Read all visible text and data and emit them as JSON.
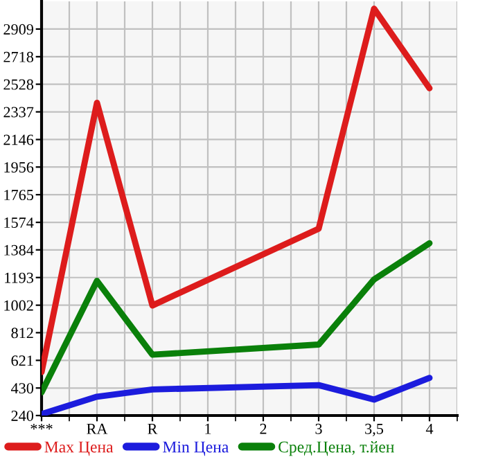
{
  "chart_data": {
    "type": "line",
    "categories": [
      "***",
      "RA",
      "R",
      "1",
      "2",
      "3",
      "3,5",
      "4"
    ],
    "series": [
      {
        "name": "Max Цена",
        "color": "#dd1c1c",
        "values": [
          540,
          2400,
          1000,
          null,
          null,
          1530,
          3050,
          2500
        ]
      },
      {
        "name": "Min Цена",
        "color": "#1c1cdd",
        "values": [
          250,
          370,
          420,
          null,
          null,
          450,
          350,
          500
        ]
      },
      {
        "name": "Сред.Цена, т.йен",
        "color": "#0a800a",
        "values": [
          400,
          1170,
          660,
          null,
          null,
          730,
          1180,
          1430
        ]
      }
    ],
    "ylim": [
      240,
      3100
    ],
    "yticks": [
      240,
      430,
      621,
      812,
      1002,
      1193,
      1384,
      1574,
      1765,
      1956,
      2146,
      2337,
      2528,
      2718,
      2909
    ],
    "grid": true,
    "legend": "bottom",
    "marker": "none",
    "line_style": "solid"
  }
}
